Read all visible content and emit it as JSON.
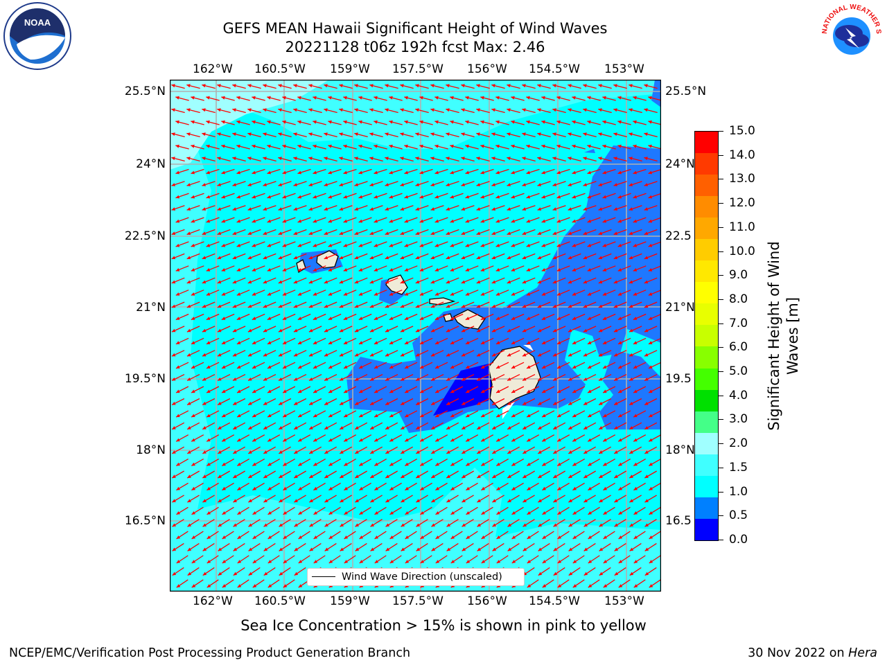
{
  "title": {
    "line1": "GEFS MEAN Hawaii Significant Height of Wind Waves",
    "line2": "20221128 t06z 192h fcst   Max: 2.46"
  },
  "map": {
    "lon_labels": [
      "162°W",
      "160.5°W",
      "159°W",
      "157.5°W",
      "156°W",
      "154.5°W",
      "153°W"
    ],
    "lat_labels": [
      "25.5°N",
      "24°N",
      "22.5°N",
      "21°N",
      "19.5°N",
      "18°N",
      "16.5°N"
    ],
    "lat_labels_right": [
      "25.5°N",
      "24°N",
      "22.5",
      "21°N",
      "19.5",
      "18°N",
      "16.5"
    ],
    "legend_label": "Wind Wave Direction (unscaled)",
    "ocean_color": "#00ffff",
    "arrow_color": "#ff0000",
    "land_color": "#efebd8"
  },
  "colorbar": {
    "label_line1": "Significant Height of Wind",
    "label_line2": "Waves [m]",
    "ticks": [
      "15.0",
      "14.0",
      "13.0",
      "12.0",
      "11.0",
      "10.0",
      "9.0",
      "8.0",
      "7.0",
      "6.0",
      "5.0",
      "4.0",
      "3.0",
      "2.0",
      "1.5",
      "1.0",
      "0.5",
      "0.0"
    ],
    "colors": [
      "#ff0000",
      "#ff3a00",
      "#ff6000",
      "#ff8c00",
      "#ffa800",
      "#ffcc00",
      "#ffe800",
      "#ffff00",
      "#e8ff00",
      "#c8ff00",
      "#88ff00",
      "#44ff00",
      "#00e000",
      "#44ff88",
      "#a0ffff",
      "#40ffff",
      "#00ffff",
      "#0080ff",
      "#0000ff"
    ]
  },
  "logos": {
    "noaa_text": "NOAA",
    "nws_text": "NATIONAL WEATHER SERVICE"
  },
  "bottom_note": "Sea Ice Concentration > 15% is shown in pink to yellow",
  "footer": {
    "left": "NCEP/EMC/Verification Post Processing Product Generation Branch",
    "right_prefix": "30 Nov 2022 on ",
    "right_italic": "Hera"
  }
}
